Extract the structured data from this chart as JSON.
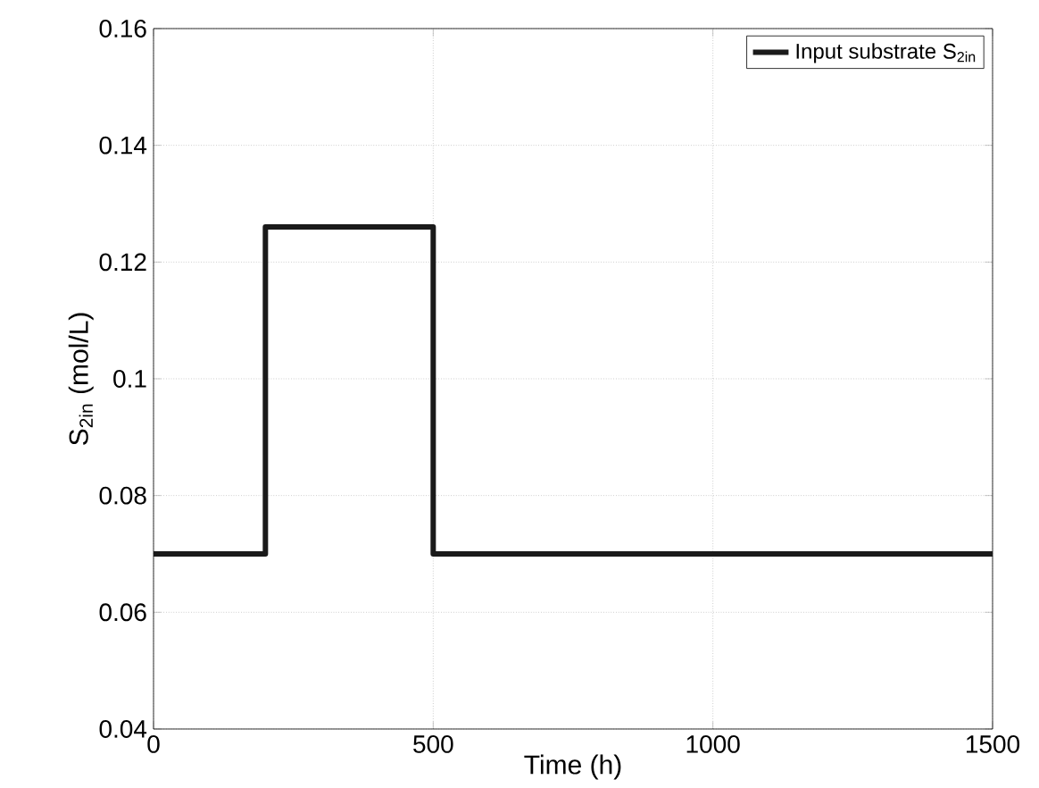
{
  "chart_data": {
    "type": "step",
    "xlabel": "Time (h)",
    "ylabel": "S$_{2in}$ (mol/L)",
    "x": [
      0,
      200,
      500,
      1500
    ],
    "series": [
      {
        "name": "Input substrate S$_{2in}$",
        "color": "#1a1a1a",
        "values": [
          0.07,
          0.126,
          0.07,
          0.07
        ]
      }
    ],
    "xlim": [
      0,
      1500
    ],
    "ylim": [
      0.04,
      0.16
    ],
    "xticks": [
      0,
      500,
      1000,
      1500
    ],
    "yticks": [
      0.04,
      0.06,
      0.08,
      0.1,
      0.12,
      0.14,
      0.16
    ],
    "grid": true,
    "legend": "top right"
  }
}
